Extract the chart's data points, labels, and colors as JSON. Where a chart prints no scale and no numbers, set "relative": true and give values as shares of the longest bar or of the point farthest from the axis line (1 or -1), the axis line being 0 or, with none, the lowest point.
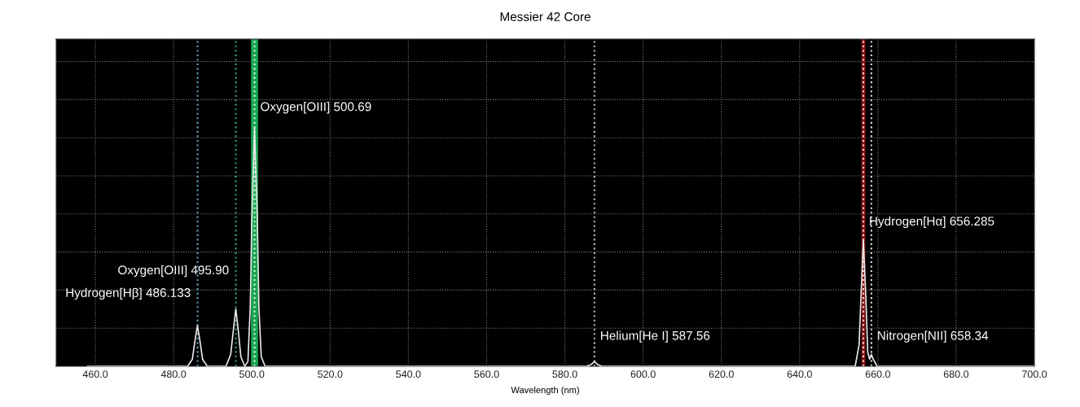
{
  "chart_data": {
    "type": "line",
    "title": "Messier 42 Core",
    "xlabel": "Wavelength (nm)",
    "relative": true,
    "xlim": [
      450,
      700
    ],
    "xticks": [
      {
        "value": 460,
        "label": "460.0"
      },
      {
        "value": 480,
        "label": "480.0"
      },
      {
        "value": 500,
        "label": "500.0"
      },
      {
        "value": 520,
        "label": "520.0"
      },
      {
        "value": 540,
        "label": "540.0"
      },
      {
        "value": 560,
        "label": "560.0"
      },
      {
        "value": 580,
        "label": "580.0"
      },
      {
        "value": 600,
        "label": "600.0"
      },
      {
        "value": 620,
        "label": "620.0"
      },
      {
        "value": 640,
        "label": "640.0"
      },
      {
        "value": 660,
        "label": "660.0"
      },
      {
        "value": 680,
        "label": "680.0"
      },
      {
        "value": 700,
        "label": "700.0"
      }
    ],
    "tick_labels": "x",
    "grid": true,
    "line_style": "solid",
    "marker": "none",
    "series": [
      {
        "color": "#e8e8e8",
        "x": [
          458,
          483.6,
          484.8,
          485.4,
          486.1,
          486.8,
          487.4,
          488.6,
          493.4,
          494.6,
          495.2,
          495.9,
          496.6,
          497.2,
          498.2,
          499.0,
          499.6,
          500.0,
          500.69,
          501.4,
          501.8,
          502.4,
          503.4,
          585.5,
          586.7,
          587.56,
          588.4,
          589.5,
          654.2,
          655.2,
          655.7,
          656.285,
          656.9,
          657.4,
          657.9,
          658.34,
          658.8,
          659.8,
          700
        ],
        "values": [
          0,
          0,
          0.03,
          0.1,
          0.17,
          0.1,
          0.03,
          0,
          0,
          0.05,
          0.14,
          0.24,
          0.14,
          0.04,
          0,
          0.02,
          0.25,
          0.62,
          1.0,
          0.62,
          0.25,
          0.04,
          0,
          0,
          0.007,
          0.02,
          0.007,
          0,
          0,
          0.09,
          0.3,
          0.53,
          0.3,
          0.06,
          0.03,
          0.05,
          0.03,
          0,
          0
        ]
      }
    ],
    "bands": [
      {
        "axis": "x",
        "from": 499.8,
        "to": 501.6,
        "color": "#1fbf5f"
      },
      {
        "axis": "x",
        "from": 655.8,
        "to": 656.8,
        "color": "#a01818"
      }
    ],
    "ref_lines": [
      {
        "axis": "x",
        "value": 486.133,
        "color": "#5fa8b8",
        "line_style": "dotted"
      },
      {
        "axis": "x",
        "value": 495.9,
        "color": "#3aa37a",
        "line_style": "dotted"
      },
      {
        "axis": "x",
        "value": 500.69,
        "color": "#d8ffe0",
        "line_style": "dotted"
      },
      {
        "axis": "x",
        "value": 587.56,
        "color": "#bbbbbb",
        "line_style": "dotted"
      },
      {
        "axis": "x",
        "value": 656.285,
        "color": "#ffdddd",
        "line_style": "dotted"
      },
      {
        "axis": "x",
        "value": 658.34,
        "color": "#dddddd",
        "line_style": "dotted"
      }
    ],
    "annotations": [
      {
        "text": "Hydrogen[Hβ] 486.133",
        "x": 486.133,
        "y": 0.28
      },
      {
        "text": "Oxygen[OIII] 495.90",
        "x": 495.9,
        "y": 0.375
      },
      {
        "text": "Oxygen[OIII] 500.69",
        "x": 500.69,
        "y": 1.06
      },
      {
        "text": "Helium[He I] 587.56",
        "x": 587.56,
        "y": 0.1
      },
      {
        "text": "Hydrogen[Hα] 656.285",
        "x": 656.285,
        "y": 0.58
      },
      {
        "text": "Nitrogen[NII] 658.34",
        "x": 658.34,
        "y": 0.1
      }
    ]
  }
}
